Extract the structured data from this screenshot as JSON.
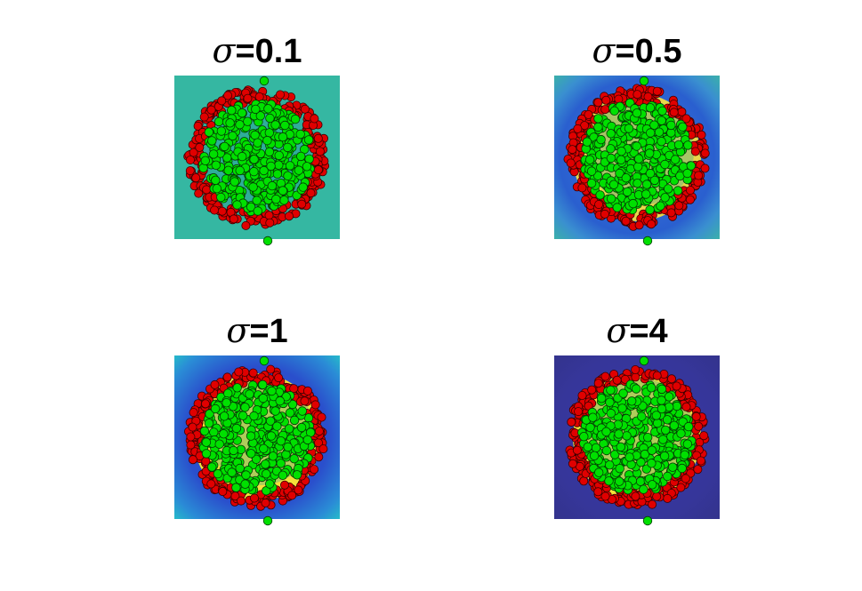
{
  "figure": {
    "panels": [
      {
        "symbol": "σ",
        "value_text": "=0.1"
      },
      {
        "symbol": "σ",
        "value_text": "=0.5"
      },
      {
        "symbol": "σ",
        "value_text": "=1"
      },
      {
        "symbol": "σ",
        "value_text": "=4"
      }
    ]
  },
  "chart_data": [
    {
      "type": "scatter",
      "title": "σ=0.1",
      "sigma": 0.1,
      "background": "decision-surface heatmap (uniform teal)",
      "series": [
        {
          "color": "#e00000",
          "shape": "ring of points around the boundary"
        },
        {
          "color": "#00e000",
          "shape": "filled disc of points in the center"
        }
      ],
      "axes": "hidden"
    },
    {
      "type": "scatter",
      "title": "σ=0.5",
      "sigma": 0.5,
      "background": "decision-surface heatmap (teal/blue with yellow in gap)",
      "series": [
        {
          "color": "#e00000",
          "shape": "ring of points around the boundary"
        },
        {
          "color": "#00e000",
          "shape": "filled disc of points in the center"
        }
      ],
      "axes": "hidden"
    },
    {
      "type": "scatter",
      "title": "σ=1",
      "sigma": 1,
      "background": "decision-surface heatmap (blue/cyan with yellow in gap)",
      "series": [
        {
          "color": "#e00000",
          "shape": "ring of points around the boundary"
        },
        {
          "color": "#00e000",
          "shape": "filled disc of points in the center"
        }
      ],
      "axes": "hidden"
    },
    {
      "type": "scatter",
      "title": "σ=4",
      "sigma": 4,
      "background": "decision-surface heatmap (dark indigo with yellow in gap)",
      "series": [
        {
          "color": "#e00000",
          "shape": "ring of points around the boundary"
        },
        {
          "color": "#00e000",
          "shape": "filled disc of points in the center"
        }
      ],
      "axes": "hidden"
    }
  ],
  "colors": {
    "class_outer": "#e00000",
    "class_inner": "#00e000",
    "gap_high": "#f5e13a",
    "bg_teal": "#35b7a2",
    "bg_blue": "#2f6fd6",
    "bg_indigo": "#35338f"
  }
}
